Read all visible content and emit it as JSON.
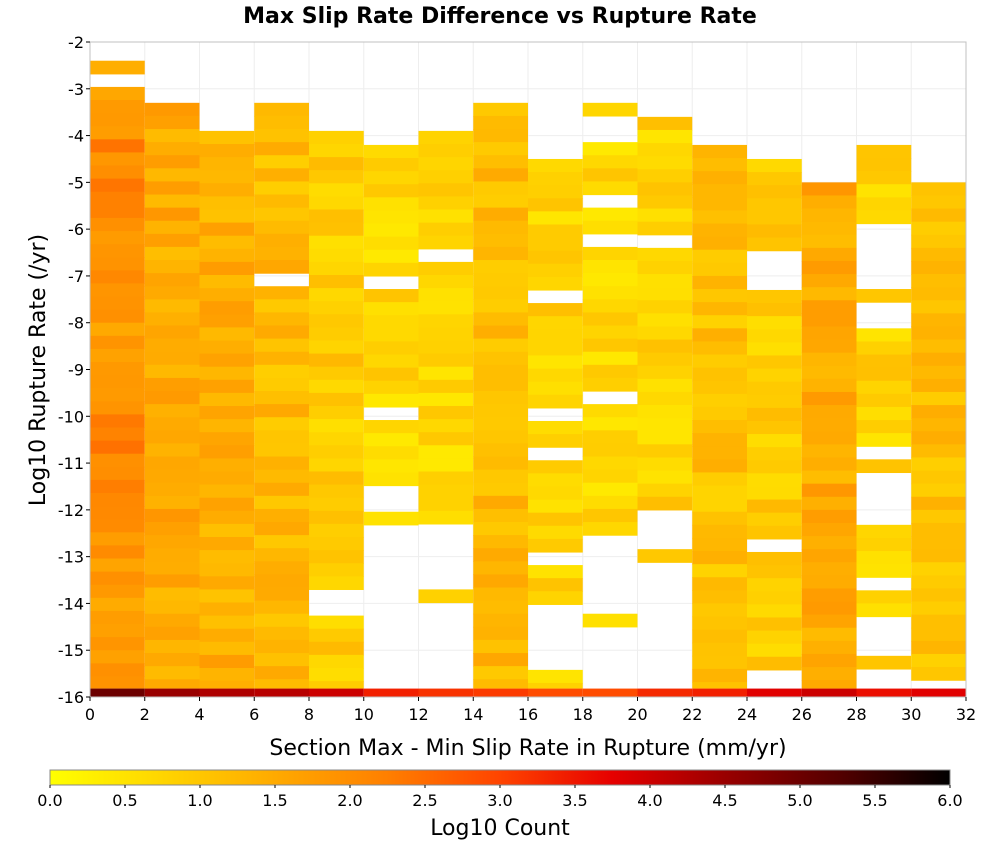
{
  "chart_data": {
    "type": "heatmap",
    "title": "Max Slip Rate Difference vs Rupture Rate",
    "xlabel": "Section Max - Min Slip Rate in Rupture (mm/yr)",
    "ylabel": "Log10 Rupture Rate (/yr)",
    "colorbar_label": "Log10 Count",
    "xlim": [
      0,
      32
    ],
    "ylim": [
      -16,
      -2
    ],
    "x_ticks": [
      "0",
      "2",
      "4",
      "6",
      "8",
      "10",
      "12",
      "14",
      "16",
      "18",
      "20",
      "22",
      "24",
      "26",
      "28",
      "30",
      "32"
    ],
    "y_ticks": [
      "-2",
      "-3",
      "-4",
      "-5",
      "-6",
      "-7",
      "-8",
      "-9",
      "-10",
      "-11",
      "-12",
      "-13",
      "-14",
      "-15",
      "-16"
    ],
    "colorbar_ticks": [
      "0.0",
      "0.5",
      "1.0",
      "1.5",
      "2.0",
      "2.5",
      "3.0",
      "3.5",
      "4.0",
      "4.5",
      "5.0",
      "5.5",
      "6.0"
    ],
    "colorbar_range": [
      0,
      6
    ],
    "colormap": [
      "#ffff00",
      "#ffd500",
      "#ffaa00",
      "#ff7f00",
      "#ff4400",
      "#e60000",
      "#990000",
      "#550000",
      "#000000"
    ],
    "x_bin_width": 2,
    "y_bin_height": 0.28,
    "columns": [
      {
        "x": 0,
        "top": -2.4,
        "gaps": [
          [
            -2.7,
            -3.0
          ]
        ],
        "base": 1.9
      },
      {
        "x": 2,
        "top": -3.3,
        "gaps": [],
        "base": 1.5
      },
      {
        "x": 4,
        "top": -3.9,
        "gaps": [],
        "base": 1.4
      },
      {
        "x": 6,
        "top": -3.3,
        "gaps": [
          [
            -6.9,
            -7.2
          ]
        ],
        "base": 1.2
      },
      {
        "x": 8,
        "top": -3.9,
        "gaps": [
          [
            -13.8,
            -14.2
          ]
        ],
        "base": 0.9
      },
      {
        "x": 10,
        "top": -4.2,
        "gaps": [
          [
            -7.1,
            -7.4
          ],
          [
            -9.9,
            -10.1
          ],
          [
            -10.5,
            -10.7
          ],
          [
            -11.6,
            -11.9
          ],
          [
            -12.2,
            -16.0
          ]
        ],
        "base": 0.7
      },
      {
        "x": 12,
        "top": -3.9,
        "gaps": [
          [
            -6.4,
            -6.6
          ],
          [
            -12.2,
            -13.6
          ],
          [
            -13.9,
            -16.0
          ]
        ],
        "base": 0.7
      },
      {
        "x": 14,
        "top": -3.3,
        "gaps": [],
        "base": 1.2
      },
      {
        "x": 16,
        "top": -4.5,
        "gaps": [
          [
            -7.3,
            -7.6
          ],
          [
            -9.8,
            -10.0
          ],
          [
            -10.6,
            -10.8
          ],
          [
            -11.7,
            -11.9
          ],
          [
            -13.0,
            -13.3
          ],
          [
            -14.0,
            -15.3
          ]
        ],
        "base": 0.8
      },
      {
        "x": 18,
        "top": -3.3,
        "gaps": [
          [
            -3.6,
            -4.2
          ],
          [
            -5.3,
            -5.5
          ],
          [
            -6.0,
            -6.4
          ],
          [
            -9.6,
            -9.8
          ],
          [
            -10.2,
            -10.4
          ],
          [
            -11.9,
            -12.1
          ],
          [
            -12.5,
            -14.2
          ],
          [
            -14.5,
            -16.0
          ]
        ],
        "base": 0.7
      },
      {
        "x": 20,
        "top": -3.6,
        "gaps": [
          [
            -6.2,
            -6.5
          ],
          [
            -12.0,
            -12.8
          ],
          [
            -13.1,
            -16.0
          ]
        ],
        "base": 0.8
      },
      {
        "x": 22,
        "top": -4.2,
        "gaps": [
          [
            -13.4,
            -13.3
          ]
        ],
        "base": 1.1
      },
      {
        "x": 24,
        "top": -4.5,
        "gaps": [
          [
            -6.5,
            -7.2
          ],
          [
            -12.6,
            -12.8
          ],
          [
            -15.3,
            -16.0
          ]
        ],
        "base": 0.9
      },
      {
        "x": 26,
        "top": -5.0,
        "gaps": [],
        "base": 1.5
      },
      {
        "x": 28,
        "top": -4.2,
        "gaps": [
          [
            -5.9,
            -7.2
          ],
          [
            -7.6,
            -8.1
          ],
          [
            -10.6,
            -10.8
          ],
          [
            -11.1,
            -12.3
          ],
          [
            -13.4,
            -13.8
          ],
          [
            -14.2,
            -15.2
          ],
          [
            -15.5,
            -16.0
          ]
        ],
        "base": 0.8
      },
      {
        "x": 30,
        "top": -5.0,
        "gaps": [
          [
            -15.5,
            -16.0
          ]
        ],
        "base": 1.1
      }
    ],
    "bottom_row": {
      "y": -16,
      "values": [
        5.0,
        4.5,
        4.3,
        4.2,
        4.0,
        3.4,
        3.2,
        3.1,
        2.9,
        2.9,
        3.3,
        3.4,
        3.8,
        4.0,
        3.6,
        3.8
      ]
    }
  }
}
